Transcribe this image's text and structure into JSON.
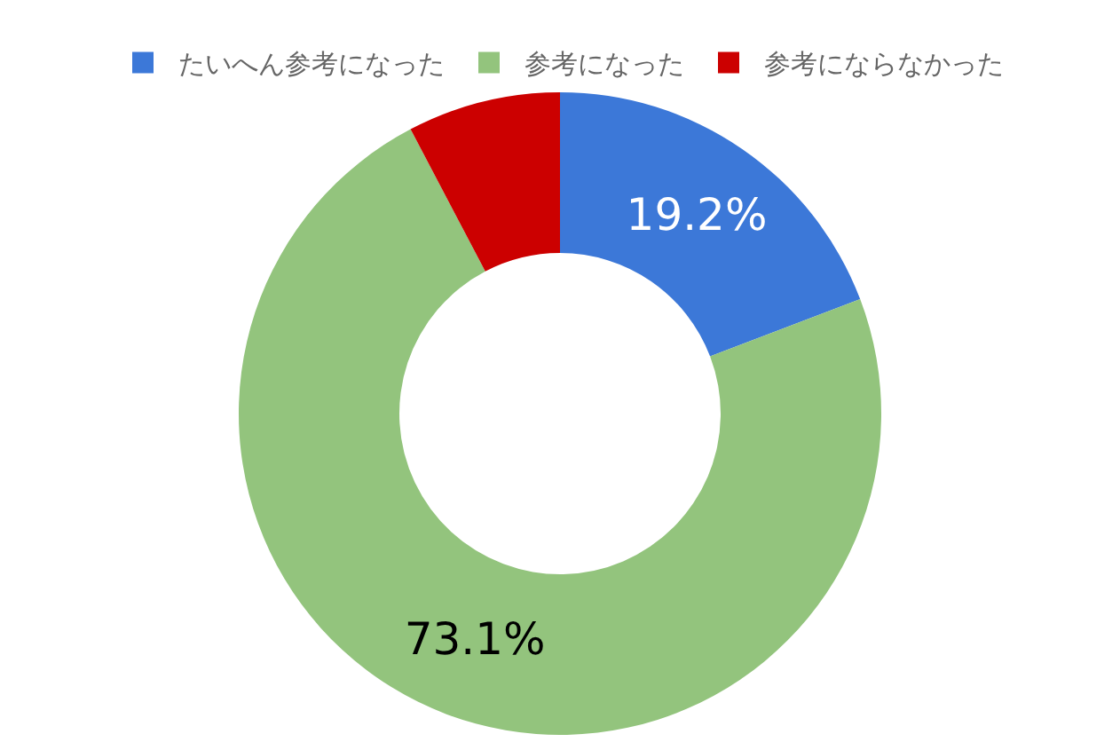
{
  "chart_data": {
    "type": "donut",
    "categories": [
      "たいへん参考になった",
      "参考になった",
      "参考にならなかった"
    ],
    "values": [
      19.2,
      73.1,
      7.7
    ],
    "colors": [
      "#3c78d8",
      "#93c47d",
      "#cc0000"
    ],
    "value_labels": [
      "19.2%",
      "73.1%",
      null
    ],
    "legend": "top"
  }
}
